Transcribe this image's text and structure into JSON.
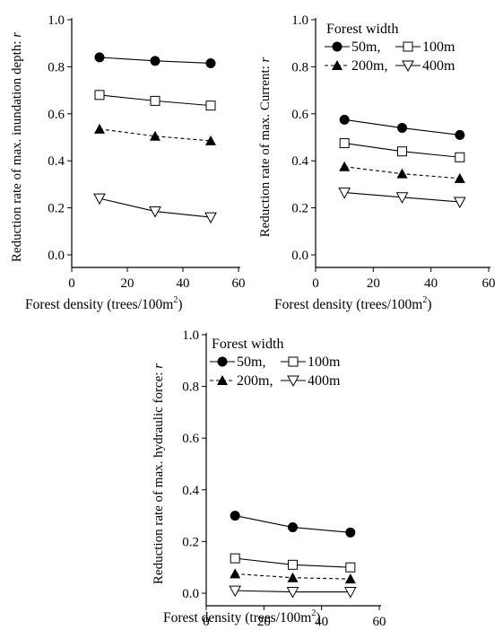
{
  "chart_data": [
    {
      "type": "line",
      "title": "",
      "xlabel": "Forest density (trees/100m",
      "xlabel_sup": "2",
      "xlabel_end": ")",
      "ylabel": "Reduction rate of max. inundation depth: ",
      "ylabel_var": "r",
      "xlim": [
        0,
        60
      ],
      "ylim": [
        0,
        1.0
      ],
      "xticks": [
        "0",
        "20",
        "40",
        "60"
      ],
      "yticks": [
        "0.0",
        "0.2",
        "0.4",
        "0.6",
        "0.8",
        "1.0"
      ],
      "x": [
        10,
        30,
        50
      ],
      "legend": null,
      "series": [
        {
          "name": "50m",
          "values": [
            0.84,
            0.825,
            0.815
          ],
          "marker": "filled-circle",
          "dash": false
        },
        {
          "name": "100m",
          "values": [
            0.68,
            0.655,
            0.635
          ],
          "marker": "open-square",
          "dash": false
        },
        {
          "name": "200m",
          "values": [
            0.535,
            0.505,
            0.485
          ],
          "marker": "filled-triangle",
          "dash": true
        },
        {
          "name": "400m",
          "values": [
            0.24,
            0.185,
            0.16
          ],
          "marker": "open-triangle-down",
          "dash": false
        }
      ]
    },
    {
      "type": "line",
      "title": "",
      "xlabel": "Forest density (trees/100m",
      "xlabel_sup": "2",
      "xlabel_end": ")",
      "ylabel": "Reduction rate of max. Current: ",
      "ylabel_var": "r",
      "xlim": [
        0,
        60
      ],
      "ylim": [
        0,
        1.0
      ],
      "xticks": [
        "0",
        "20",
        "40",
        "60"
      ],
      "yticks": [
        "0.0",
        "0.2",
        "0.4",
        "0.6",
        "0.8",
        "1.0"
      ],
      "x": [
        10,
        30,
        50
      ],
      "legend": {
        "title": "Forest width",
        "placement": "top-right",
        "rows": [
          [
            {
              "series": 0,
              "label": "50m,"
            },
            {
              "series": 1,
              "label": "100m"
            }
          ],
          [
            {
              "series": 2,
              "label": "200m,"
            },
            {
              "series": 3,
              "label": "400m"
            }
          ]
        ]
      },
      "series": [
        {
          "name": "50m",
          "values": [
            0.575,
            0.54,
            0.51
          ],
          "marker": "filled-circle",
          "dash": false
        },
        {
          "name": "100m",
          "values": [
            0.475,
            0.44,
            0.415
          ],
          "marker": "open-square",
          "dash": false
        },
        {
          "name": "200m",
          "values": [
            0.375,
            0.345,
            0.325
          ],
          "marker": "filled-triangle",
          "dash": true
        },
        {
          "name": "400m",
          "values": [
            0.265,
            0.245,
            0.225
          ],
          "marker": "open-triangle-down",
          "dash": false
        }
      ]
    },
    {
      "type": "line",
      "title": "",
      "xlabel": "Forest density (trees/100m",
      "xlabel_sup": "2",
      "xlabel_end": ")",
      "ylabel": "Reduction rate of max. hydraulic force: ",
      "ylabel_var": "r",
      "xlim": [
        0,
        60
      ],
      "ylim": [
        0,
        1.0
      ],
      "xticks": [
        "0",
        "20",
        "40",
        "60"
      ],
      "yticks": [
        "0.0",
        "0.2",
        "0.4",
        "0.6",
        "0.8",
        "1.0"
      ],
      "x": [
        10,
        30,
        50
      ],
      "legend": {
        "title": "Forest width",
        "placement": "top-left",
        "rows": [
          [
            {
              "series": 0,
              "label": "50m,"
            },
            {
              "series": 1,
              "label": "100m"
            }
          ],
          [
            {
              "series": 2,
              "label": "200m,"
            },
            {
              "series": 3,
              "label": "400m"
            }
          ]
        ]
      },
      "series": [
        {
          "name": "50m",
          "values": [
            0.3,
            0.255,
            0.235
          ],
          "marker": "filled-circle",
          "dash": false
        },
        {
          "name": "100m",
          "values": [
            0.135,
            0.11,
            0.1
          ],
          "marker": "open-square",
          "dash": false
        },
        {
          "name": "200m",
          "values": [
            0.075,
            0.06,
            0.055
          ],
          "marker": "filled-triangle",
          "dash": true
        },
        {
          "name": "400m",
          "values": [
            0.01,
            0.005,
            0.005
          ],
          "marker": "open-triangle-down",
          "dash": false
        }
      ]
    }
  ]
}
